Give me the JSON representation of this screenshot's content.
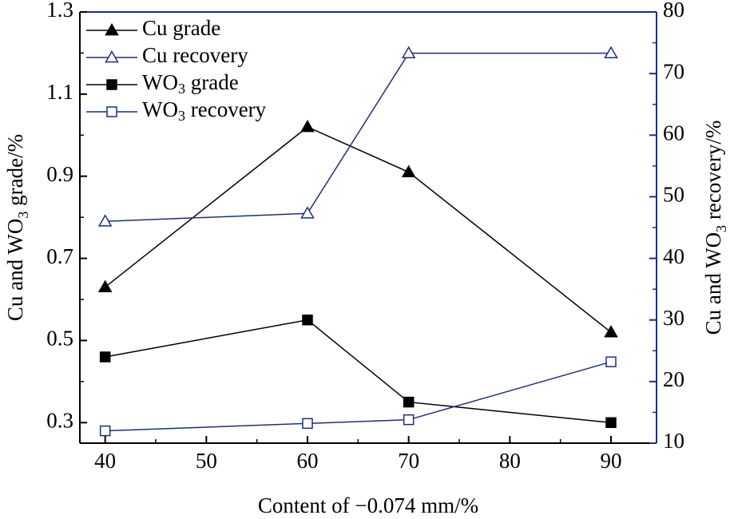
{
  "chart_data": {
    "type": "line",
    "title": "",
    "xlabel": "Content of −0.074 mm/%",
    "ylabel_left": {
      "pre": "Cu and WO",
      "sub": "3",
      "post": " grade/%"
    },
    "ylabel_right": {
      "pre": "Cu and WO",
      "sub": "3",
      "post": " recovery/%"
    },
    "x_ticks": [
      40,
      50,
      60,
      70,
      80,
      90
    ],
    "xlim": [
      37.5,
      94.5
    ],
    "ylim_left": [
      0.25,
      1.3
    ],
    "ylim_right": [
      10,
      80
    ],
    "y_ticks_left": [
      "0.3",
      "0.5",
      "0.7",
      "0.9",
      "1.1",
      "1.3"
    ],
    "y_ticks_right": [
      "10",
      "20",
      "30",
      "40",
      "50",
      "60",
      "70",
      "80"
    ],
    "grid": false,
    "legend_position": "top-left",
    "colors": {
      "black": "#000000",
      "blue": "#1f2f7a"
    },
    "series": [
      {
        "key": "cu_grade",
        "legend": {
          "pre": "Cu grade",
          "sub": "",
          "post": ""
        },
        "axis": "left",
        "marker": "triangle",
        "filled": true,
        "color": "#000000",
        "x": [
          40,
          60,
          70,
          90
        ],
        "y": [
          0.63,
          1.02,
          0.91,
          0.52
        ]
      },
      {
        "key": "cu_recovery",
        "legend": {
          "pre": "Cu recovery",
          "sub": "",
          "post": ""
        },
        "axis": "right",
        "marker": "triangle",
        "filled": false,
        "color": "#1f2f7a",
        "x": [
          40,
          60,
          70,
          90
        ],
        "y": [
          46,
          47.3,
          73.3,
          73.3
        ]
      },
      {
        "key": "wo3_grade",
        "legend": {
          "pre": "WO",
          "sub": "3",
          "post": " grade"
        },
        "axis": "left",
        "marker": "square",
        "filled": true,
        "color": "#000000",
        "x": [
          40,
          60,
          70,
          90
        ],
        "y": [
          0.46,
          0.55,
          0.35,
          0.3
        ]
      },
      {
        "key": "wo3_recovery",
        "legend": {
          "pre": "WO",
          "sub": "3",
          "post": " recovery"
        },
        "axis": "right",
        "marker": "square",
        "filled": false,
        "color": "#1f2f7a",
        "x": [
          40,
          60,
          70,
          90
        ],
        "y": [
          12,
          13.2,
          13.8,
          23.2
        ]
      }
    ]
  }
}
